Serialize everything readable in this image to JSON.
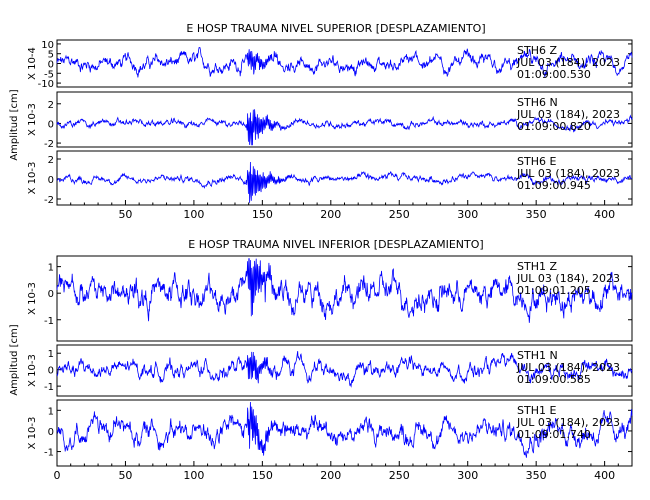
{
  "chart_data": [
    {
      "type": "line",
      "title": "E HOSP TRAUMA NIVEL SUPERIOR [DESPLAZAMIENTO]",
      "ylabel": "Amplitud [cm]",
      "xlim": [
        0,
        420
      ],
      "x_ticks": [
        50,
        100,
        150,
        200,
        250,
        300,
        350,
        400
      ],
      "line_color": "#0000ff",
      "traces": [
        {
          "station": "STH6",
          "component": "Z",
          "date": "JUL 03 (184), 2023",
          "time": "01:09:00.530",
          "scale": "X 10-4",
          "ylim": [
            -12,
            12
          ],
          "y_ticks": [
            "10",
            "5",
            "0",
            "-5",
            "-10"
          ],
          "y_tick_values": [
            10,
            5,
            0,
            -5,
            -10
          ],
          "noise": 3,
          "trend": 0,
          "event": 6
        },
        {
          "station": "STH6",
          "component": "N",
          "date": "JUL 03 (184), 2023",
          "time": "01:09:00.820",
          "scale": "X 10-3",
          "ylim": [
            -2.4,
            3.2
          ],
          "y_ticks": [
            "2",
            "0",
            "-2"
          ],
          "y_tick_values": [
            2,
            0,
            -2
          ],
          "noise": 0.3,
          "trend": 0,
          "event": 2.3
        },
        {
          "station": "STH6",
          "component": "E",
          "date": "JUL 03 (184), 2023",
          "time": "01:09:00.945",
          "scale": "X 10-3",
          "ylim": [
            -2.6,
            2.8
          ],
          "y_ticks": [
            "2",
            "0",
            "-2"
          ],
          "y_tick_values": [
            2,
            0,
            -2
          ],
          "noise": 0.3,
          "trend": 0,
          "event": 2.2
        }
      ]
    },
    {
      "type": "line",
      "title": "E HOSP TRAUMA NIVEL INFERIOR [DESPLAZAMIENTO]",
      "ylabel": "Amplitud [cm]",
      "xlim": [
        0,
        420
      ],
      "x_ticks": [
        0,
        50,
        100,
        150,
        200,
        250,
        300,
        350,
        400
      ],
      "line_color": "#0000ff",
      "traces": [
        {
          "station": "STH1",
          "component": "Z",
          "date": "JUL 03 (184), 2023",
          "time": "01:09:01.205",
          "scale": "X 10-3",
          "ylim": [
            -1.8,
            1.4
          ],
          "y_ticks": [
            "1",
            "0",
            "-1"
          ],
          "y_tick_values": [
            1,
            0,
            -1
          ],
          "noise": 0.45,
          "trend": 0,
          "event": 1.1
        },
        {
          "station": "STH1",
          "component": "N",
          "date": "JUL 03 (184), 2023",
          "time": "01:09:00.585",
          "scale": "X 10-3",
          "ylim": [
            -1.6,
            1.5
          ],
          "y_ticks": [
            "1",
            "0",
            "-1"
          ],
          "y_tick_values": [
            1,
            0,
            -1
          ],
          "noise": 0.4,
          "trend": 0,
          "event": 0.9
        },
        {
          "station": "STH1",
          "component": "E",
          "date": "JUL 03 (184), 2023",
          "time": "01:09:01.740",
          "scale": "X 10-3",
          "ylim": [
            -1.7,
            1.5
          ],
          "y_ticks": [
            "1",
            "0",
            "-1"
          ],
          "y_tick_values": [
            1,
            0,
            -1
          ],
          "noise": 0.45,
          "trend": 0,
          "event": 1.0
        }
      ]
    }
  ]
}
